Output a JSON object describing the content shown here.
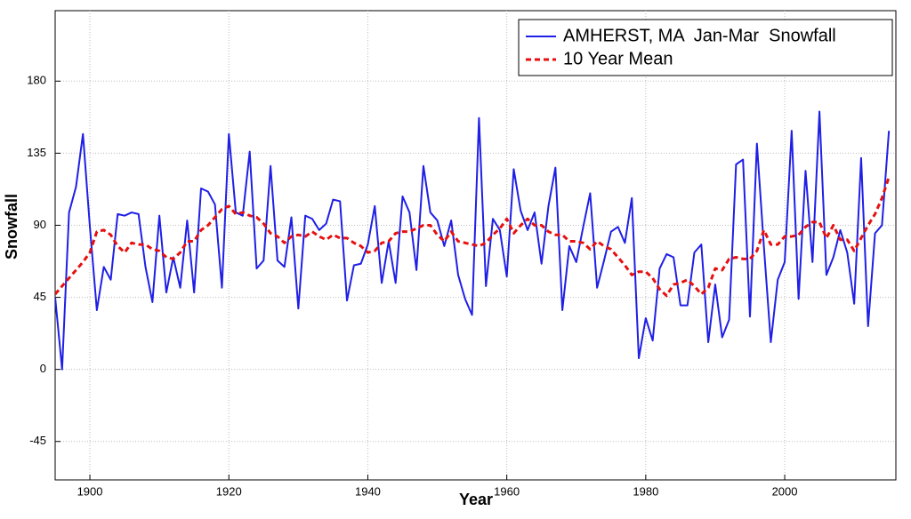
{
  "chart_data": {
    "type": "line",
    "xlabel": "Year",
    "ylabel": "Snowfall",
    "x": [
      1895,
      1896,
      1897,
      1898,
      1899,
      1900,
      1901,
      1902,
      1903,
      1904,
      1905,
      1906,
      1907,
      1908,
      1909,
      1910,
      1911,
      1912,
      1913,
      1914,
      1915,
      1916,
      1917,
      1918,
      1919,
      1920,
      1921,
      1922,
      1923,
      1924,
      1925,
      1926,
      1927,
      1928,
      1929,
      1930,
      1931,
      1932,
      1933,
      1934,
      1935,
      1936,
      1937,
      1938,
      1939,
      1940,
      1941,
      1942,
      1943,
      1944,
      1945,
      1946,
      1947,
      1948,
      1949,
      1950,
      1951,
      1952,
      1953,
      1954,
      1955,
      1956,
      1957,
      1958,
      1959,
      1960,
      1961,
      1962,
      1963,
      1964,
      1965,
      1966,
      1967,
      1968,
      1969,
      1970,
      1971,
      1972,
      1973,
      1974,
      1975,
      1976,
      1977,
      1978,
      1979,
      1980,
      1981,
      1982,
      1983,
      1984,
      1985,
      1986,
      1987,
      1988,
      1989,
      1990,
      1991,
      1992,
      1993,
      1994,
      1995,
      1996,
      1997,
      1998,
      1999,
      2000,
      2001,
      2002,
      2003,
      2004,
      2005,
      2006,
      2007,
      2008,
      2009,
      2010,
      2011,
      2012,
      2013,
      2014,
      2015
    ],
    "series": [
      {
        "name": "AMHERST, MA  Jan-Mar  Snowfall",
        "color": "#1f1fe6",
        "dashed": false,
        "values": [
          45,
          0,
          98,
          114,
          147,
          89,
          37,
          64,
          56,
          97,
          96,
          98,
          97,
          64,
          42,
          96,
          48,
          70,
          51,
          93,
          48,
          113,
          111,
          103,
          51,
          147,
          98,
          96,
          136,
          63,
          68,
          127,
          68,
          64,
          95,
          38,
          96,
          94,
          87,
          91,
          106,
          105,
          43,
          65,
          66,
          78,
          102,
          54,
          80,
          54,
          108,
          98,
          62,
          127,
          98,
          93,
          77,
          93,
          59,
          44,
          34,
          157,
          52,
          94,
          87,
          58,
          125,
          99,
          87,
          98,
          66,
          102,
          126,
          37,
          77,
          67,
          89,
          110,
          51,
          68,
          86,
          89,
          79,
          107,
          7,
          32,
          18,
          63,
          72,
          70,
          40,
          40,
          73,
          78,
          17,
          53,
          20,
          31,
          128,
          131,
          33,
          141,
          77,
          17,
          56,
          67,
          149,
          44,
          124,
          67,
          161,
          59,
          70,
          87,
          73,
          41,
          132,
          27,
          85,
          90,
          149
        ]
      },
      {
        "name": "10 Year Mean",
        "color": "#e61010",
        "dashed": true,
        "values": [
          47,
          52,
          57,
          62,
          67,
          73,
          86,
          87,
          84,
          77,
          73,
          79,
          78,
          78,
          75,
          74,
          70,
          69,
          73,
          80,
          80,
          87,
          90,
          95,
          100,
          102,
          97,
          98,
          96,
          95,
          91,
          85,
          83,
          79,
          83,
          84,
          83,
          86,
          83,
          81,
          84,
          82,
          82,
          79,
          77,
          73,
          74,
          79,
          80,
          85,
          86,
          86,
          88,
          90,
          90,
          84,
          80,
          86,
          80,
          79,
          78,
          77,
          79,
          84,
          88,
          94,
          85,
          90,
          94,
          90,
          90,
          86,
          84,
          84,
          80,
          80,
          79,
          75,
          80,
          77,
          75,
          70,
          65,
          59,
          61,
          61,
          57,
          50,
          46,
          53,
          54,
          56,
          52,
          47,
          51,
          63,
          62,
          69,
          70,
          69,
          69,
          74,
          87,
          78,
          78,
          83,
          83,
          84,
          89,
          92,
          92,
          82,
          90,
          81,
          81,
          74,
          82,
          90,
          97,
          107,
          120
        ]
      }
    ],
    "xlim": [
      1895,
      2016
    ],
    "xticks": [
      1900,
      1920,
      1940,
      1960,
      1980,
      2000
    ],
    "ylim": [
      -69,
      224
    ],
    "yticks": [
      -45,
      0,
      45,
      90,
      135,
      180
    ],
    "grid": true,
    "legend": "upper right"
  }
}
